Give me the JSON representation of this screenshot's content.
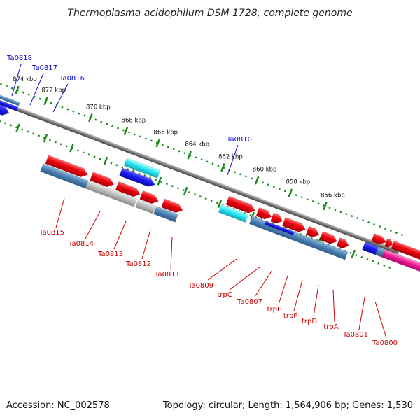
{
  "title": "Thermoplasma acidophilum DSM 1728, complete genome",
  "footer": {
    "accession": "Accession: NC_002578",
    "topology": "Topology: circular; Length: 1,564,906 bp; Genes: 1,530"
  },
  "colors": {
    "forward_strand": "#e8000b",
    "reverse_strand": "#1a1aee",
    "pseudo_slate": "#4a7fb0",
    "pseudo_gray": "#b8b8b8",
    "cyan": "#22e3ee",
    "magenta": "#ee1a94",
    "purple": "#7a6ee0",
    "orange": "#f08c00",
    "backbone": "#7a7a7a",
    "ruler_dots": "#1e8a1e",
    "label_blue": "#0a0ad0",
    "label_red": "#cc0000"
  },
  "scale_labels": [
    "874 kbp",
    "872 kbp",
    "870 kbp",
    "868 kbp",
    "866 kbp",
    "864 kbp",
    "862 kbp",
    "860 kbp",
    "858 kbp",
    "856 kbp"
  ],
  "top_gene_labels": [
    "Ta0818",
    "Ta0817",
    "Ta0816",
    "Ta0810"
  ],
  "bottom_gene_labels": [
    "Ta0815",
    "Ta0814",
    "Ta0813",
    "Ta0812",
    "Ta0811",
    "Ta0809",
    "trpC",
    "Ta0807",
    "trpE",
    "trpF",
    "trpD",
    "trpA",
    "Ta0801",
    "Ta0800"
  ]
}
